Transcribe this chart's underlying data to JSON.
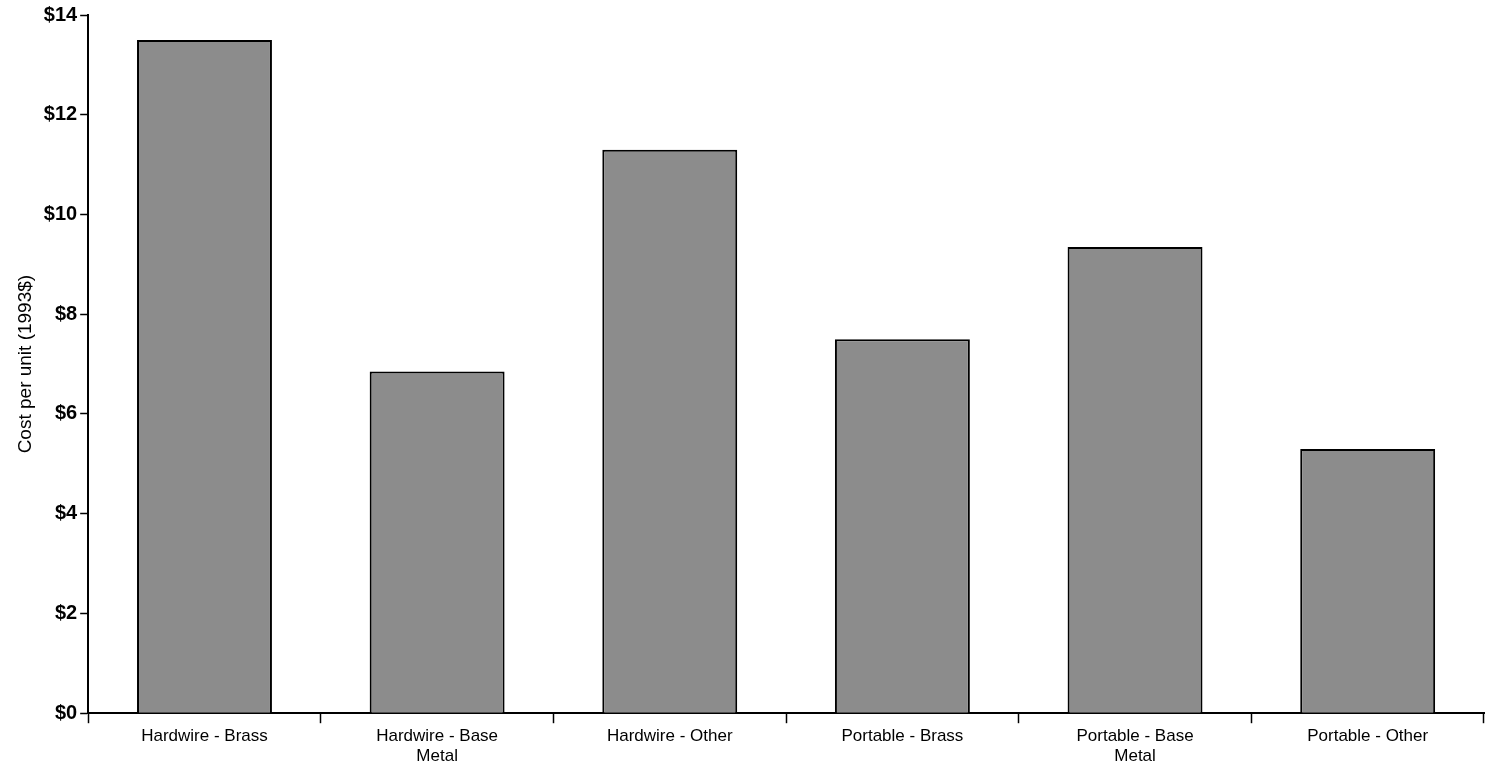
{
  "chart_data": {
    "type": "bar",
    "ylabel": "Cost per unit (1993$)",
    "categories": [
      "Hardwire - Brass",
      "Hardwire - Base Metal",
      "Hardwire - Other",
      "Portable - Brass",
      "Portable - Base Metal",
      "Portable - Other"
    ],
    "values": [
      13.5,
      6.85,
      11.3,
      7.5,
      9.35,
      5.3
    ],
    "color": "#8c8c8c",
    "ylim": [
      0,
      14
    ],
    "yticks": [
      {
        "value": 0,
        "label": "$0"
      },
      {
        "value": 2,
        "label": "$2"
      },
      {
        "value": 4,
        "label": "$4"
      },
      {
        "value": 6,
        "label": "$6"
      },
      {
        "value": 8,
        "label": "$8"
      },
      {
        "value": 10,
        "label": "$10"
      },
      {
        "value": 12,
        "label": "$12"
      },
      {
        "value": 14,
        "label": "$14"
      }
    ],
    "grid": false,
    "legend": false
  }
}
